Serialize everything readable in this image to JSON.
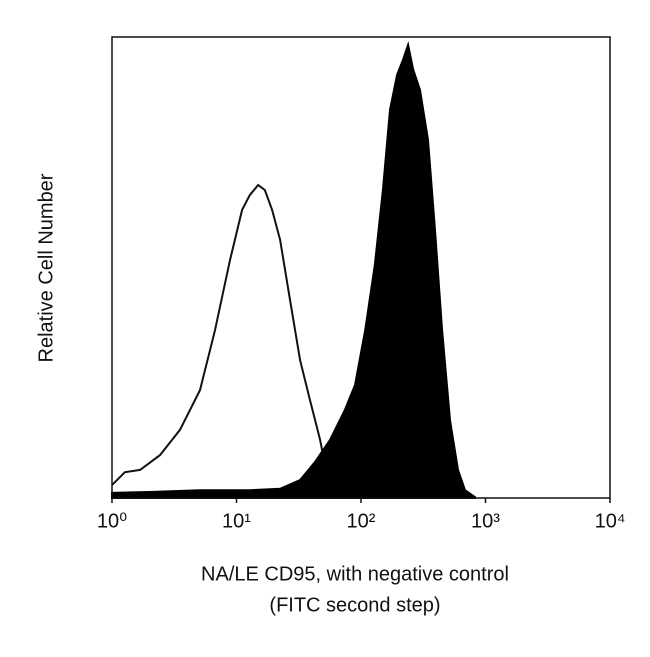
{
  "chart_data": {
    "type": "histogram-overlay",
    "xlabel": "NA/LE CD95, with negative control",
    "xlabel2": "(FITC second step)",
    "ylabel": "Relative Cell Number",
    "xscale": "log",
    "xlim": [
      1,
      10000
    ],
    "xticks": [
      {
        "value": 1,
        "label": "10⁰"
      },
      {
        "value": 10,
        "label": "10¹"
      },
      {
        "value": 100,
        "label": "10²"
      },
      {
        "value": 1000,
        "label": "10³"
      },
      {
        "value": 10000,
        "label": "10⁴"
      }
    ],
    "ylim": [
      0,
      100
    ],
    "series": [
      {
        "name": "negative control",
        "style": "outline",
        "color": "#111111",
        "x": [
          1,
          1.27,
          1.68,
          2.43,
          3.52,
          5.09,
          6.72,
          8.87,
          11.1,
          12.8,
          14.9,
          16.9,
          19.3,
          22.4,
          26.9,
          32.4,
          38.9,
          46.9,
          56.4
        ],
        "values": [
          2.8,
          5.6,
          6.1,
          9.3,
          14.8,
          23.4,
          36.4,
          51.6,
          62.5,
          65.7,
          67.9,
          66.8,
          62.5,
          56.0,
          43.0,
          29.9,
          21.3,
          12.6,
          1.7
        ]
      },
      {
        "name": "CD95",
        "style": "filled",
        "color": "#000000",
        "x": [
          1,
          2.02,
          5.09,
          12.8,
          22.4,
          32.4,
          42.7,
          56.4,
          74.3,
          89.5,
          108,
          129,
          150,
          171,
          195,
          217,
          239,
          262,
          298,
          345,
          393,
          448,
          519,
          601,
          684,
          824
        ],
        "values": [
          1.1,
          1.3,
          1.7,
          1.7,
          2.0,
          3.9,
          7.8,
          12.6,
          19.1,
          24.5,
          36.4,
          50.5,
          66.8,
          84.2,
          91.8,
          95.0,
          98.3,
          93.0,
          88.5,
          77.7,
          58.1,
          36.4,
          16.9,
          6.1,
          1.7,
          0.2
        ]
      }
    ]
  }
}
